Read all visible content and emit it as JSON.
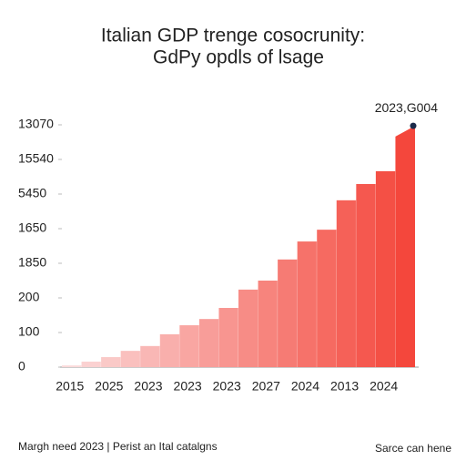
{
  "chart_data": {
    "type": "step-area",
    "title": "Italian GDP trenge cosocrunity:",
    "subtitle": "GdPy opdls of lsage",
    "categories": [
      "2015",
      null,
      "2025",
      null,
      "2023",
      null,
      "2023",
      null,
      "2023",
      null,
      "2027",
      null,
      "2024",
      null,
      "2013",
      null,
      "2024",
      null
    ],
    "values": [
      5,
      16,
      29,
      47,
      61,
      95,
      121,
      139,
      171,
      224,
      250,
      311,
      363,
      397,
      482,
      529,
      566,
      666
    ],
    "color_range": [
      "#fbdada",
      "#f4473c"
    ],
    "ylim": [
      0,
      700
    ],
    "yticks": [
      0,
      100,
      200,
      {
        "value": 300,
        "label": "1850"
      },
      {
        "value": 400,
        "label": "1650"
      },
      {
        "value": 500,
        "label": "5450"
      },
      {
        "value": 600,
        "label": "15540"
      },
      {
        "value": 700,
        "label": "13070"
      }
    ],
    "annotation": {
      "text": "2023,G004",
      "value": 697,
      "color": "#1a2a4a"
    },
    "footer_left": "Margh need 2023 | Perist an Ital catalgns",
    "footer_right": "Sarce can hene"
  }
}
